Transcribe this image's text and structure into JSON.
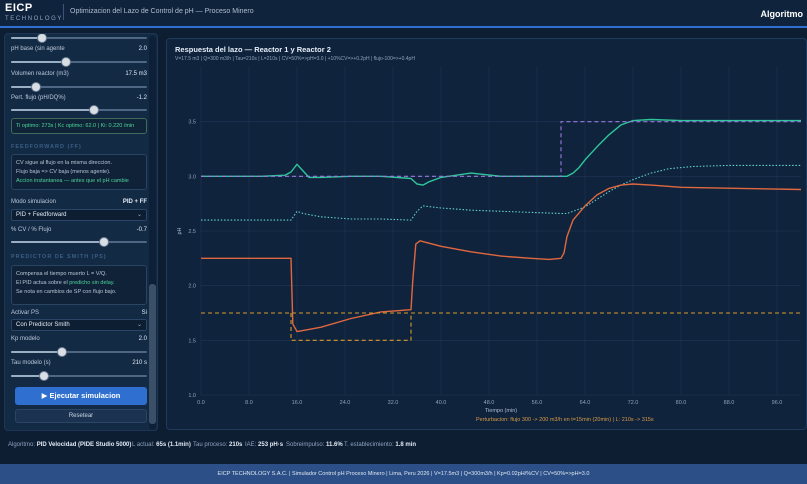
{
  "header": {
    "logo_main": "EICP",
    "logo_sub": "TECHNOLOGY",
    "title": "Optimizacion del Lazo de Control de pH — Proceso Minero",
    "right": "Algoritmo"
  },
  "sidebar": {
    "params": [
      {
        "label": "pH base (sin agente",
        "value": "2.0",
        "slider": 0.4
      },
      {
        "label": "Volumen reactor (m3)",
        "value": "17.5 m3",
        "slider": 0.18
      },
      {
        "label": "Pert. flujo (pH/DQ%)",
        "value": "-1.2",
        "slider": 0.6
      }
    ],
    "tuning_box": "Ti optimo: 273s | Kc optimo: 62.0 | Ki: 0.220 /min",
    "ff_title": "FEEDFORWARD (FF)",
    "ff_info": [
      "CV sigue al flujo en la misma direccion.",
      "Flujo baja => CV baja (menos agente).",
      "Accion instantanea — antes que el pH cambie"
    ],
    "mode_label": "Modo simulacion",
    "mode_value": "PID + FF",
    "mode_select": "PID + Feedforward",
    "cv_label": "% CV / % Flujo",
    "cv_value": "-0.7",
    "cv_slider": 0.65,
    "ps_title": "PREDICTOR DE SMITH (PS)",
    "ps_info": [
      "Compensa el tiempo muerto L = V/Q.",
      "El PID actua sobre el",
      "predicho sin delay.",
      "Se nota en cambios de SP con flujo bajo."
    ],
    "ps_label": "Activar PS",
    "ps_value": "Si",
    "ps_select": "Con Predictor Smith",
    "kp_label": "Kp modelo",
    "kp_value": "2.0",
    "kp_slider": 0.35,
    "tau_label": "Tau modelo (s)",
    "tau_value": "210 s",
    "tau_slider": 0.15,
    "run_label": "▶ Ejecutar simulacion",
    "reset_label": "Resetear"
  },
  "chart_panel": {
    "title": "Respuesta del lazo — Reactor 1 y Reactor 2",
    "subtitle": "V=17.5 m3 | Q=300 m3/h | Tau=210s | L=210s | CV=50%=>pH=3.0 | +10%CV=>+0.2pH | flujo-100=>+0.4pH",
    "note": "Perturbacion: flujo 300 -> 200 m3/h en t=15min (20min) | L: 210s -> 315s"
  },
  "chart_data": {
    "type": "line",
    "xlabel": "Tiempo (min)",
    "ylabel": "pH",
    "xlim": [
      0,
      100
    ],
    "ylim": [
      1.0,
      4.0
    ],
    "xticks": [
      0.0,
      8.0,
      16.0,
      24.0,
      32.0,
      40.0,
      48.0,
      56.0,
      64.0,
      72.0,
      80.0,
      88.0,
      96.0
    ],
    "yticks": [
      1.0,
      1.5,
      2.0,
      2.5,
      3.0,
      3.5
    ],
    "grid": true,
    "series": [
      {
        "style": "solid",
        "color": "#2ec69a",
        "x": [
          0,
          10,
          14,
          15,
          16,
          17,
          18,
          20,
          25,
          30,
          35,
          36,
          37,
          38,
          40,
          45,
          50,
          55,
          60,
          61,
          62,
          63,
          64,
          66,
          68,
          70,
          72,
          75,
          80,
          90,
          100
        ],
        "y": [
          3.0,
          3.0,
          3.01,
          3.04,
          3.11,
          3.05,
          2.99,
          2.99,
          3.0,
          3.0,
          2.98,
          2.93,
          2.92,
          2.95,
          2.99,
          3.03,
          3.0,
          3.0,
          3.0,
          3.0,
          3.03,
          3.08,
          3.15,
          3.27,
          3.38,
          3.47,
          3.51,
          3.52,
          3.51,
          3.51,
          3.51
        ]
      },
      {
        "style": "dashed",
        "color": "#9b7ae0",
        "x": [
          0,
          60,
          60,
          100
        ],
        "y": [
          3.0,
          3.0,
          3.5,
          3.5
        ]
      },
      {
        "style": "dotted",
        "color": "#5fd3cf",
        "x": [
          0,
          10,
          15,
          16,
          17,
          20,
          25,
          30,
          35,
          36,
          37,
          40,
          45,
          55,
          60,
          61,
          62,
          64,
          66,
          68,
          70,
          72,
          75,
          78,
          82,
          88,
          100
        ],
        "y": [
          2.6,
          2.6,
          2.6,
          2.68,
          2.66,
          2.63,
          2.61,
          2.61,
          2.6,
          2.68,
          2.73,
          2.71,
          2.69,
          2.67,
          2.66,
          2.66,
          2.68,
          2.72,
          2.79,
          2.86,
          2.92,
          2.97,
          3.03,
          3.07,
          3.09,
          3.1,
          3.1
        ]
      },
      {
        "style": "solid",
        "color": "#e0683f",
        "x": [
          0,
          14.8,
          15,
          15.3,
          16,
          18,
          20,
          25,
          30,
          35,
          35.3,
          35.8,
          36.5,
          40,
          45,
          50,
          55,
          58,
          60,
          60.5,
          61,
          62,
          64,
          66,
          68,
          70,
          72,
          75,
          80,
          90,
          100
        ],
        "y": [
          2.25,
          2.25,
          2.25,
          1.65,
          1.58,
          1.6,
          1.62,
          1.7,
          1.76,
          1.78,
          2.05,
          2.38,
          2.41,
          2.36,
          2.31,
          2.27,
          2.25,
          2.24,
          2.25,
          2.3,
          2.45,
          2.6,
          2.73,
          2.83,
          2.89,
          2.92,
          2.93,
          2.92,
          2.9,
          2.89,
          2.88
        ]
      },
      {
        "style": "dashed",
        "color": "#d99a2b",
        "x": [
          0,
          100
        ],
        "y": [
          1.75,
          1.75
        ]
      },
      {
        "style": "dashed",
        "color": "#d99a2b",
        "x": [
          15,
          15,
          35,
          35
        ],
        "y": [
          1.75,
          1.5,
          1.5,
          1.75
        ]
      }
    ]
  },
  "status": {
    "algo_label": "Algoritmo:",
    "algo_value": "PID Velocidad (PIDE Studio 5000)",
    "l_label": "L actual:",
    "l_value": "65s (1.1min)",
    "tau_label": "Tau proceso:",
    "tau_value": "210s",
    "iae_label": "IAE:",
    "iae_value": "253 pH·s",
    "over_label": "Sobreimpulso:",
    "over_value": "11.6%",
    "t_label": "T. establecimiento:",
    "t_value": "1.8 min"
  },
  "footer": {
    "text": "EICP TECHNOLOGY S.A.C. | Simulador Control pH Proceso Minero | Lima, Peru 2026 | V=17.5m3 | Q=300m3/h | Kp=0.02pH/%CV | CV=50%=>pH=3.0"
  },
  "colors": {
    "accent": "#2e6fcf",
    "green": "#4ed39a",
    "orange": "#d99a45"
  }
}
